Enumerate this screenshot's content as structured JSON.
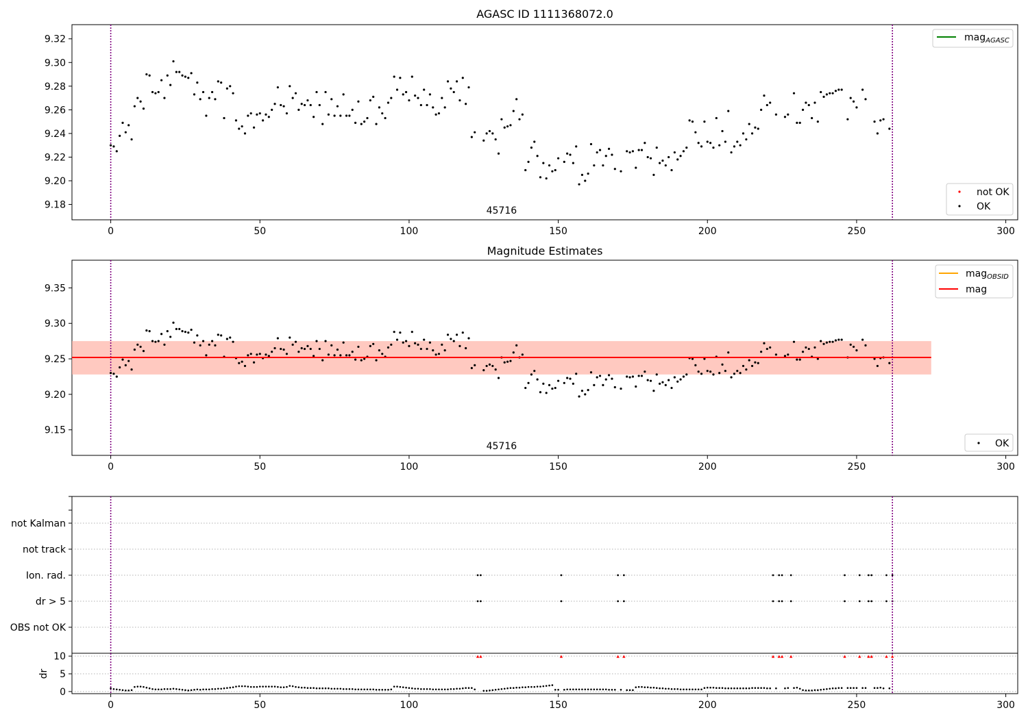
{
  "colors": {
    "ok": "#000000",
    "not_ok": "#ff0000",
    "mag_agasc": "#008000",
    "mag_obsid": "#ffa500",
    "mag": "#ff0000",
    "band_outer": "#ffc0cb",
    "band_inner": "#ffa07a",
    "obs_boundary": "#800080",
    "grid": "#b0b0b0"
  },
  "chart_data": [
    {
      "type": "scatter",
      "title": "AGASC ID 1111368072.0",
      "xlim": [
        -13,
        304
      ],
      "ylim": [
        9.167,
        9.332
      ],
      "xticks": [
        0,
        50,
        100,
        150,
        200,
        250,
        300
      ],
      "yticks": [
        9.18,
        9.2,
        9.22,
        9.24,
        9.26,
        9.28,
        9.3,
        9.32
      ],
      "ytick_labels": [
        "9.18",
        "9.20",
        "9.22",
        "9.24",
        "9.26",
        "9.28",
        "9.30",
        "9.32"
      ],
      "obsid_label": "45716",
      "obs_boundaries": [
        0,
        262
      ],
      "legend_lines": [
        {
          "label": "mag",
          "sub": "AGASC",
          "color_key": "mag_agasc"
        }
      ],
      "legend_points": [
        {
          "label": "not OK",
          "color_key": "not_ok"
        },
        {
          "label": "OK",
          "color_key": "ok"
        }
      ],
      "series": [
        {
          "name": "OK",
          "source": "mag_values"
        }
      ]
    },
    {
      "type": "scatter",
      "title": "Magnitude Estimates",
      "xlim": [
        -13,
        304
      ],
      "ylim": [
        9.114,
        9.389
      ],
      "xticks": [
        0,
        50,
        100,
        150,
        200,
        250,
        300
      ],
      "yticks": [
        9.15,
        9.2,
        9.25,
        9.3,
        9.35
      ],
      "ytick_labels": [
        "9.15",
        "9.20",
        "9.25",
        "9.30",
        "9.35"
      ],
      "obsid_label": "45716",
      "obs_boundaries": [
        0,
        262
      ],
      "band_x": [
        -13,
        275
      ],
      "band_outer_y": [
        9.228,
        9.275
      ],
      "band_inner_y": [
        9.228,
        9.275
      ],
      "mag_line": 9.252,
      "mag_obsid_line": 9.252,
      "legend_lines": [
        {
          "label": "mag",
          "sub": "OBSID",
          "color_key": "mag_obsid"
        },
        {
          "label": "mag",
          "sub": "",
          "color_key": "mag"
        }
      ],
      "legend_points": [
        {
          "label": "OK",
          "color_key": "ok"
        }
      ],
      "series": [
        {
          "name": "OK",
          "source": "mag_values"
        }
      ]
    },
    {
      "type": "scatter",
      "title": "",
      "xlim": [
        -13,
        304
      ],
      "xticks": [
        0,
        50,
        100,
        150,
        200,
        250,
        300
      ],
      "categories": [
        "not Kalman",
        "not track",
        "Ion. rad.",
        "dr > 5",
        "OBS not OK"
      ],
      "flag_points": {
        "Ion. rad.": [
          123,
          124,
          151,
          170,
          172,
          222,
          224,
          225,
          228,
          246,
          251,
          254,
          255,
          260,
          262
        ],
        "dr > 5": [
          123,
          124,
          151,
          170,
          172,
          222,
          224,
          225,
          228,
          246,
          251,
          254,
          255,
          260,
          262
        ]
      },
      "obs_boundaries": [
        0,
        262
      ]
    },
    {
      "type": "scatter",
      "title": "",
      "xlim": [
        -13,
        304
      ],
      "ylim": [
        -0.6,
        10.8
      ],
      "ylabel": "dr",
      "xticks": [
        0,
        50,
        100,
        150,
        200,
        250,
        300
      ],
      "yticks": [
        0,
        5,
        10
      ],
      "ytick_labels": [
        "0",
        "5",
        "10"
      ],
      "clipped_marker_y": 9.9,
      "clipped_x": [
        123,
        124,
        151,
        170,
        172,
        222,
        224,
        225,
        228,
        246,
        251,
        254,
        255,
        260,
        262
      ],
      "obs_boundaries": [
        0,
        262
      ],
      "series": [
        {
          "name": "dr",
          "source": "dr_values"
        }
      ]
    }
  ],
  "mag_values": {
    "x_start": 0,
    "gaps": [
      [
        123,
        124
      ],
      [
        151,
        151
      ],
      [
        170,
        170
      ],
      [
        172,
        172
      ],
      [
        222,
        222
      ],
      [
        224,
        225
      ],
      [
        228,
        228
      ],
      [
        246,
        246
      ],
      [
        251,
        251
      ],
      [
        254,
        255
      ],
      [
        260,
        260
      ]
    ],
    "y": [
      9.23,
      9.229,
      9.225,
      9.238,
      9.249,
      9.241,
      9.247,
      9.235,
      9.263,
      9.27,
      9.267,
      9.261,
      9.29,
      9.289,
      9.275,
      9.274,
      9.275,
      9.285,
      9.27,
      9.289,
      9.281,
      9.301,
      9.292,
      9.292,
      9.289,
      9.288,
      9.287,
      9.291,
      9.273,
      9.283,
      9.269,
      9.275,
      9.255,
      9.27,
      9.275,
      9.269,
      9.284,
      9.283,
      9.253,
      9.278,
      9.28,
      9.274,
      9.251,
      9.244,
      9.246,
      9.24,
      9.255,
      9.257,
      9.245,
      9.256,
      9.257,
      9.251,
      9.256,
      9.254,
      9.26,
      9.265,
      9.279,
      9.264,
      9.263,
      9.257,
      9.28,
      9.27,
      9.274,
      9.26,
      9.265,
      9.264,
      9.268,
      9.264,
      9.254,
      9.275,
      9.264,
      9.248,
      9.275,
      9.256,
      9.269,
      9.255,
      9.263,
      9.255,
      9.273,
      9.255,
      9.255,
      9.26,
      9.249,
      9.267,
      9.248,
      9.25,
      9.253,
      9.268,
      9.271,
      9.248,
      9.262,
      9.257,
      9.253,
      9.266,
      9.27,
      9.288,
      9.277,
      9.287,
      9.273,
      9.275,
      9.268,
      9.288,
      9.272,
      9.27,
      9.264,
      9.277,
      9.264,
      9.273,
      9.262,
      9.256,
      9.257,
      9.27,
      9.262,
      9.284,
      9.278,
      9.275,
      9.284,
      9.268,
      9.287,
      9.265,
      9.279,
      9.237,
      9.241,
      9.234,
      9.24,
      9.242,
      9.24,
      9.235,
      9.223,
      9.252,
      9.245,
      9.246,
      9.247,
      9.259,
      9.269,
      9.252,
      9.256,
      9.209,
      9.216,
      9.228,
      9.233,
      9.221,
      9.203,
      9.215,
      9.202,
      9.213,
      9.208,
      9.209,
      9.219,
      9.216,
      9.223,
      9.222,
      9.215,
      9.229,
      9.197,
      9.205,
      9.2,
      9.206,
      9.231,
      9.213,
      9.224,
      9.226,
      9.213,
      9.221,
      9.227,
      9.222,
      9.21,
      9.208,
      9.225,
      9.224,
      9.225,
      9.211,
      9.226,
      9.226,
      9.232,
      9.22,
      9.219,
      9.205,
      9.228,
      9.215,
      9.217,
      9.213,
      9.22,
      9.209,
      9.224,
      9.218,
      9.221,
      9.225,
      9.228,
      9.251,
      9.25,
      9.241,
      9.232,
      9.229,
      9.25,
      9.233,
      9.232,
      9.228,
      9.253,
      9.23,
      9.242,
      9.233,
      9.259,
      9.224,
      9.229,
      9.233,
      9.23,
      9.24,
      9.235,
      9.248,
      9.24,
      9.245,
      9.244,
      9.26,
      9.272,
      9.264,
      9.266,
      9.256,
      9.254,
      9.256,
      9.274,
      9.249,
      9.249,
      9.26,
      9.266,
      9.264,
      9.253,
      9.266,
      9.25,
      9.275,
      9.271,
      9.273,
      9.274,
      9.274,
      9.276,
      9.277,
      9.277,
      9.252,
      9.27,
      9.267,
      9.262,
      9.277,
      9.269,
      9.25,
      9.24,
      9.251,
      9.252,
      9.244
    ]
  },
  "dr_values": {
    "x_start": 0,
    "y": [
      0.9,
      0.7,
      0.6,
      0.5,
      0.4,
      0.3,
      0.3,
      0.4,
      1.3,
      1.4,
      1.4,
      1.3,
      1.1,
      0.9,
      0.7,
      0.6,
      0.6,
      0.6,
      0.7,
      0.7,
      0.7,
      0.8,
      0.7,
      0.6,
      0.5,
      0.4,
      0.3,
      0.4,
      0.5,
      0.6,
      0.5,
      0.6,
      0.6,
      0.6,
      0.7,
      0.7,
      0.8,
      0.8,
      0.9,
      1.0,
      1.1,
      1.2,
      1.4,
      1.5,
      1.5,
      1.5,
      1.4,
      1.3,
      1.3,
      1.3,
      1.4,
      1.4,
      1.4,
      1.4,
      1.4,
      1.4,
      1.3,
      1.2,
      1.2,
      1.3,
      1.6,
      1.5,
      1.3,
      1.2,
      1.1,
      1.1,
      1.0,
      1.0,
      1.0,
      0.9,
      0.9,
      0.9,
      0.9,
      0.9,
      0.8,
      0.8,
      0.8,
      0.8,
      0.7,
      0.7,
      0.7,
      0.7,
      0.6,
      0.6,
      0.6,
      0.6,
      0.6,
      0.6,
      0.6,
      0.5,
      0.5,
      0.5,
      0.5,
      0.5,
      0.6,
      1.4,
      1.4,
      1.3,
      1.2,
      1.1,
      1.0,
      0.9,
      0.8,
      0.8,
      0.7,
      0.7,
      0.7,
      0.7,
      0.6,
      0.6,
      0.6,
      0.6,
      0.6,
      0.6,
      0.7,
      0.7,
      0.8,
      0.8,
      0.9,
      1.0,
      1.0,
      1.0,
      0.6,
      0.2,
      0.2,
      0.3,
      0.4,
      0.5,
      0.6,
      0.7,
      0.8,
      0.9,
      1.0,
      1.0,
      1.1,
      1.1,
      1.2,
      1.2,
      1.3,
      1.3,
      1.3,
      1.4,
      1.4,
      1.5,
      1.6,
      1.7,
      1.8,
      0.5,
      0.5,
      0.5,
      0.6,
      0.6,
      0.6,
      0.6,
      0.6,
      0.6,
      0.6,
      0.6,
      0.6,
      0.6,
      0.6,
      0.6,
      0.6,
      0.6,
      0.5,
      0.5,
      0.5,
      0.5,
      0.4,
      0.4,
      0.4,
      1.2,
      1.3,
      1.3,
      1.2,
      1.2,
      1.1,
      1.1,
      1.0,
      0.9,
      0.9,
      0.8,
      0.8,
      0.7,
      0.7,
      0.7,
      0.6,
      0.6,
      0.6,
      0.6,
      0.6,
      0.6,
      0.6,
      0.6,
      1.0,
      1.1,
      1.1,
      1.1,
      1.0,
      1.0,
      1.0,
      0.9,
      0.9,
      0.9,
      0.9,
      0.9,
      0.9,
      0.9,
      0.9,
      0.9,
      1.0,
      1.0,
      1.0,
      1.0,
      1.0,
      0.9,
      0.9,
      0.9,
      0.9,
      1.0,
      1.0,
      1.1,
      0.8,
      0.4,
      0.3,
      0.3,
      0.3,
      0.4,
      0.4,
      0.5,
      0.6,
      0.7,
      0.8,
      0.9,
      0.9,
      1.0,
      1.0,
      1.0,
      1.0,
      1.0,
      1.0,
      1.0,
      1.0,
      1.0,
      1.0,
      1.1,
      0.9,
      0.9,
      0.8,
      0.8,
      0.7,
      0.7,
      0.6,
      0.6,
      0.5,
      0.5,
      0.4,
      0.4,
      0.4,
      0.5
    ]
  }
}
